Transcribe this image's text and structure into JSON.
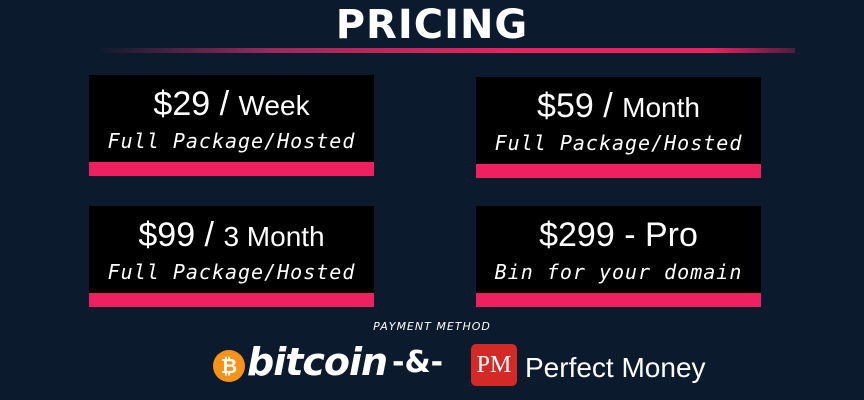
{
  "title": "PRICING",
  "accent_color": "#ee2060",
  "plans": [
    {
      "price": "$29 /",
      "unit": "Week",
      "desc": "Full Package/Hosted"
    },
    {
      "price": "$59 /",
      "unit": "Month",
      "desc": "Full Package/Hosted"
    },
    {
      "price": "$99 /",
      "unit": "3 Month",
      "desc": "Full Package/Hosted"
    },
    {
      "price": "$299 - Pro",
      "unit": "",
      "desc": "Bin for your domain"
    }
  ],
  "payment": {
    "label": "PAYMENT METHOD",
    "bitcoin": "bitcoin",
    "bitcoin_symbol": "₿",
    "separator": "-&-",
    "pm_logo": "PM",
    "perfect_money": "Perfect Money"
  }
}
